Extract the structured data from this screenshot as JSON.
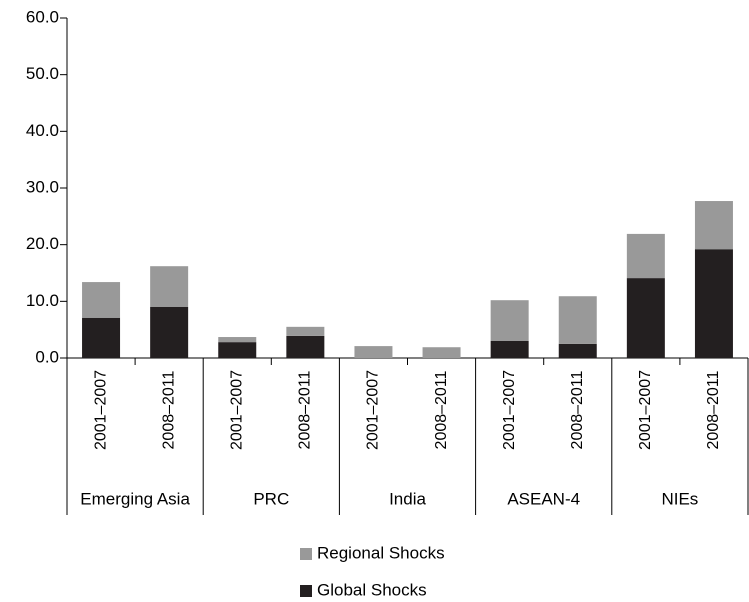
{
  "chart_data": {
    "type": "stacked-bar",
    "groups": [
      "Emerging Asia",
      "PRC",
      "India",
      "ASEAN-4",
      "NIEs"
    ],
    "categories": [
      "2001–2007",
      "2008–2011",
      "2001–2007",
      "2008–2011",
      "2001–2007",
      "2008–2011",
      "2001–2007",
      "2008–2011",
      "2001–2007",
      "2008–2011"
    ],
    "series": [
      {
        "name": "Global Shocks",
        "color": "#231f20",
        "values": [
          7.1,
          9.0,
          2.8,
          3.9,
          0,
          0,
          3.0,
          2.5,
          14.1,
          19.2
        ]
      },
      {
        "name": "Regional Shocks",
        "color": "#999999",
        "values": [
          6.3,
          7.2,
          0.9,
          1.6,
          2.1,
          1.9,
          7.2,
          8.4,
          7.8,
          8.5
        ]
      }
    ],
    "ylim": [
      0,
      60
    ],
    "yticks": [
      {
        "value": 0,
        "label": "0.0"
      },
      {
        "value": 10,
        "label": "10.0"
      },
      {
        "value": 20,
        "label": "20.0"
      },
      {
        "value": 30,
        "label": "30.0"
      },
      {
        "value": 40,
        "label": "40.0"
      },
      {
        "value": 50,
        "label": "50.0"
      },
      {
        "value": 60,
        "label": "60.0"
      }
    ]
  }
}
